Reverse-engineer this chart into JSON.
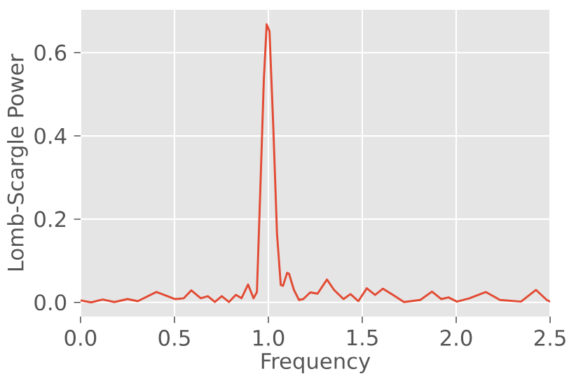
{
  "chart_data": {
    "type": "line",
    "xlabel": "Frequency",
    "ylabel": "Lomb-Scargle Power",
    "x": [
      0,
      0.056,
      0.118,
      0.18,
      0.25,
      0.305,
      0.404,
      0.504,
      0.55,
      0.59,
      0.64,
      0.678,
      0.715,
      0.752,
      0.79,
      0.827,
      0.857,
      0.892,
      0.921,
      0.939,
      0.956,
      0.976,
      0.991,
      1.006,
      1.026,
      1.046,
      1.066,
      1.078,
      1.1,
      1.11,
      1.136,
      1.163,
      1.186,
      1.223,
      1.262,
      1.312,
      1.35,
      1.4,
      1.437,
      1.479,
      1.524,
      1.568,
      1.61,
      1.66,
      1.722,
      1.809,
      1.871,
      1.921,
      1.959,
      2.004,
      2.071,
      2.158,
      2.233,
      2.345,
      2.425,
      2.482,
      2.5
    ],
    "series": [
      {
        "color": "#e24a33",
        "values": [
          0.005,
          0.0,
          0.007,
          0.001,
          0.008,
          0.003,
          0.025,
          0.008,
          0.01,
          0.029,
          0.01,
          0.015,
          0.001,
          0.015,
          0.001,
          0.018,
          0.01,
          0.043,
          0.01,
          0.025,
          0.255,
          0.536,
          0.668,
          0.651,
          0.424,
          0.165,
          0.042,
          0.04,
          0.071,
          0.069,
          0.03,
          0.006,
          0.008,
          0.024,
          0.021,
          0.055,
          0.03,
          0.008,
          0.02,
          0.003,
          0.034,
          0.018,
          0.033,
          0.019,
          0.001,
          0.006,
          0.026,
          0.008,
          0.012,
          0.002,
          0.01,
          0.025,
          0.006,
          0.002,
          0.03,
          0.006,
          0.002
        ]
      }
    ],
    "xlim": [
      0,
      2.5
    ],
    "ylim": [
      -0.034,
      0.703
    ],
    "xticks": [
      {
        "value": 0,
        "label": "0.0"
      },
      0.5,
      {
        "value": 1,
        "label": "1.0"
      },
      1.5,
      {
        "value": 2,
        "label": "2.0"
      },
      2.5
    ],
    "yticks": [
      {
        "value": 0,
        "label": "0.0"
      },
      0.2,
      0.4,
      0.6
    ],
    "grid": true,
    "marker": "none",
    "line_style": "solid"
  }
}
